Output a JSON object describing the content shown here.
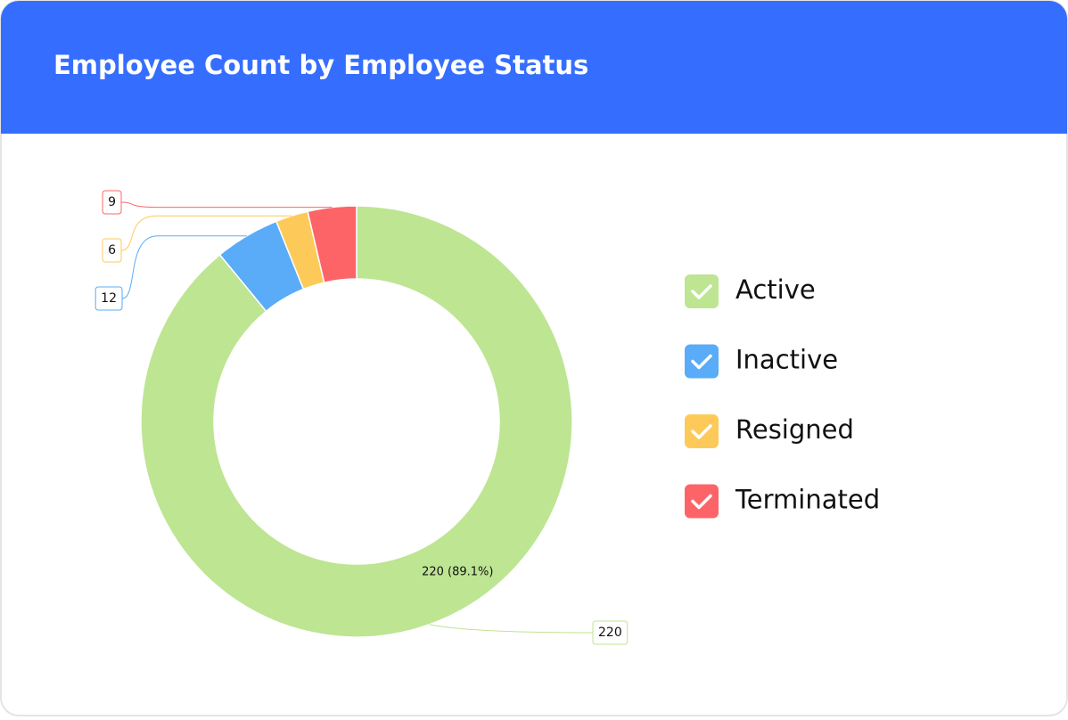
{
  "chart_data": {
    "type": "donut",
    "title": "Employee Count by Employee Status",
    "categories": [
      "Active",
      "Inactive",
      "Resigned",
      "Terminated"
    ],
    "values": [
      220,
      12,
      6,
      9
    ],
    "value_labels": [
      "220 (89.1%)",
      null,
      null,
      null
    ],
    "colors": [
      "#bde592",
      "#5aabf8",
      "#fdca5a",
      "#fd6468"
    ],
    "legend": "right"
  }
}
